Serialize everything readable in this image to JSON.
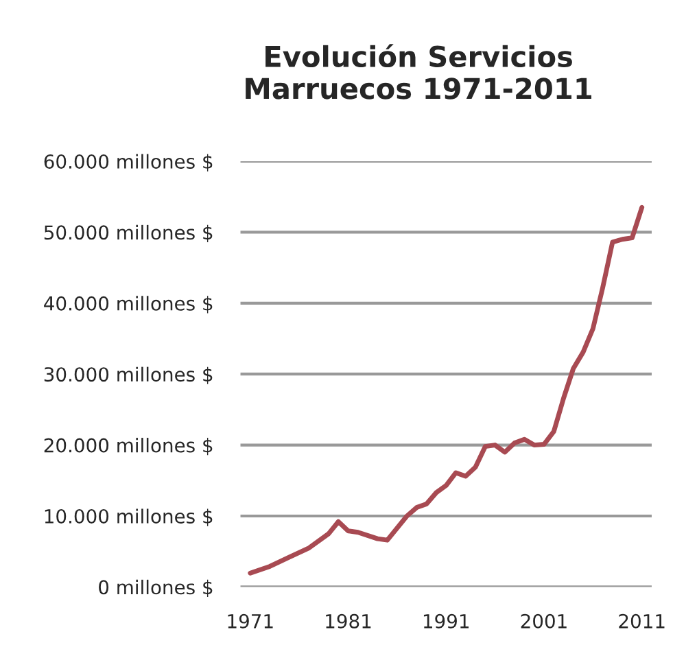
{
  "chart_data": {
    "type": "line",
    "title": "Evolución Servicios\nMarruecos 1971-2011",
    "x": [
      1971,
      1973,
      1975,
      1977,
      1979,
      1980,
      1981,
      1982,
      1984,
      1985,
      1987,
      1988,
      1989,
      1990,
      1991,
      1992,
      1993,
      1994,
      1995,
      1996,
      1997,
      1998,
      1999,
      2000,
      2001,
      2002,
      2003,
      2004,
      2005,
      2006,
      2007,
      2008,
      2009,
      2010,
      2011
    ],
    "series": [
      {
        "color": "#a84a52",
        "values": [
          1950,
          2900,
          4200,
          5500,
          7500,
          9200,
          7900,
          7700,
          6800,
          6600,
          10000,
          11200,
          11700,
          13300,
          14300,
          16100,
          15600,
          16900,
          19800,
          20000,
          19000,
          20300,
          20800,
          20000,
          20100,
          21900,
          26600,
          30800,
          33100,
          36400,
          42200,
          48600,
          49000,
          49200,
          53500
        ]
      }
    ],
    "xlim": [
      1970,
      2012
    ],
    "xticks": [
      1971,
      1981,
      1991,
      2001,
      2011
    ],
    "ylim": [
      0,
      60000
    ],
    "yticks": [
      {
        "value": 0,
        "label": "0 millones $"
      },
      {
        "value": 10000,
        "label": "10.000 millones $"
      },
      {
        "value": 20000,
        "label": "20.000 millones $"
      },
      {
        "value": 30000,
        "label": "30.000 millones $"
      },
      {
        "value": 40000,
        "label": "40.000 millones $"
      },
      {
        "value": 50000,
        "label": "50.000 millones $"
      },
      {
        "value": 60000,
        "label": "60.000 millones $"
      }
    ],
    "grid": "y",
    "marker": "none",
    "line_style": "solid",
    "legend": false
  }
}
